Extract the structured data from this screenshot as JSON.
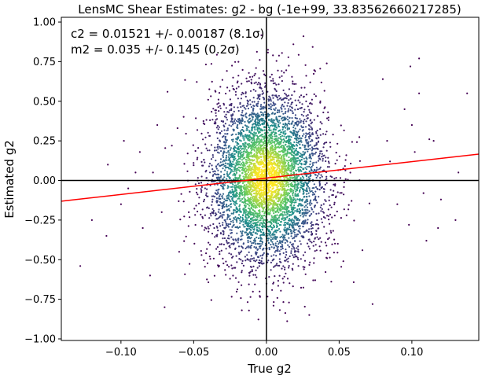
{
  "chart_data": {
    "type": "scatter",
    "title": "LensMC Shear Estimates: g2  - bg (-1e+99, 33.83562660217285)",
    "xlabel": "True g2",
    "ylabel": "Estimated g2",
    "xlim": [
      -0.141,
      0.146
    ],
    "ylim": [
      -1.01,
      1.03
    ],
    "xticks": [
      -0.1,
      -0.05,
      0.0,
      0.05,
      0.1
    ],
    "xtick_labels": [
      "−0.10",
      "−0.05",
      "0.00",
      "0.05",
      "0.10"
    ],
    "yticks": [
      -1.0,
      -0.75,
      -0.5,
      -0.25,
      0.0,
      0.25,
      0.5,
      0.75,
      1.0
    ],
    "ytick_labels": [
      "−1.00",
      "−0.75",
      "−0.50",
      "−0.25",
      "0.00",
      "0.25",
      "0.50",
      "0.75",
      "1.00"
    ],
    "grid": false,
    "colormap": "viridis (density)",
    "reference_lines": [
      {
        "orientation": "vertical",
        "x": 0.0,
        "color": "#000000"
      },
      {
        "orientation": "horizontal",
        "y": 0.0,
        "color": "#000000"
      }
    ],
    "fit_line": {
      "slope": 1.035,
      "intercept": 0.01521,
      "color": "#ff0000",
      "x": [
        -0.141,
        0.146
      ]
    },
    "annotations": [
      "c2 = 0.01521 +/- 0.00187 (8.1σ)",
      "m2 = 0.035 +/- 0.145 (0.2σ)"
    ],
    "sample_points": [
      {
        "x": -0.128,
        "y": -0.54
      },
      {
        "x": -0.12,
        "y": -0.25
      },
      {
        "x": -0.11,
        "y": -0.35
      },
      {
        "x": -0.109,
        "y": 0.1
      },
      {
        "x": -0.1,
        "y": -0.15
      },
      {
        "x": -0.098,
        "y": 0.25
      },
      {
        "x": -0.095,
        "y": -0.05
      },
      {
        "x": -0.09,
        "y": 0.05
      },
      {
        "x": -0.087,
        "y": 0.18
      },
      {
        "x": -0.085,
        "y": -0.3
      },
      {
        "x": -0.08,
        "y": -0.6
      },
      {
        "x": -0.078,
        "y": 0.05
      },
      {
        "x": -0.075,
        "y": 0.35
      },
      {
        "x": -0.072,
        "y": -0.2
      },
      {
        "x": -0.07,
        "y": -0.8
      },
      {
        "x": -0.068,
        "y": 0.56
      },
      {
        "x": -0.065,
        "y": 0.22
      },
      {
        "x": -0.06,
        "y": -0.45
      },
      {
        "x": 0.08,
        "y": 0.64
      },
      {
        "x": 0.083,
        "y": 0.25
      },
      {
        "x": 0.085,
        "y": 0.12
      },
      {
        "x": 0.09,
        "y": -0.15
      },
      {
        "x": 0.095,
        "y": 0.45
      },
      {
        "x": 0.098,
        "y": -0.28
      },
      {
        "x": 0.1,
        "y": 0.35
      },
      {
        "x": 0.102,
        "y": 0.18
      },
      {
        "x": 0.105,
        "y": 0.55
      },
      {
        "x": 0.108,
        "y": -0.08
      },
      {
        "x": 0.11,
        "y": -0.38
      },
      {
        "x": 0.112,
        "y": 0.26
      },
      {
        "x": 0.115,
        "y": 0.25
      },
      {
        "x": 0.12,
        "y": -0.12
      },
      {
        "x": 0.13,
        "y": -0.25
      },
      {
        "x": 0.132,
        "y": 0.05
      },
      {
        "x": 0.138,
        "y": 0.55
      },
      {
        "x": 0.105,
        "y": 0.77
      },
      {
        "x": 0.099,
        "y": 0.72
      },
      {
        "x": 0.118,
        "y": -0.3
      },
      {
        "x": 0.073,
        "y": -0.78
      },
      {
        "x": 0.066,
        "y": -0.44
      }
    ]
  }
}
